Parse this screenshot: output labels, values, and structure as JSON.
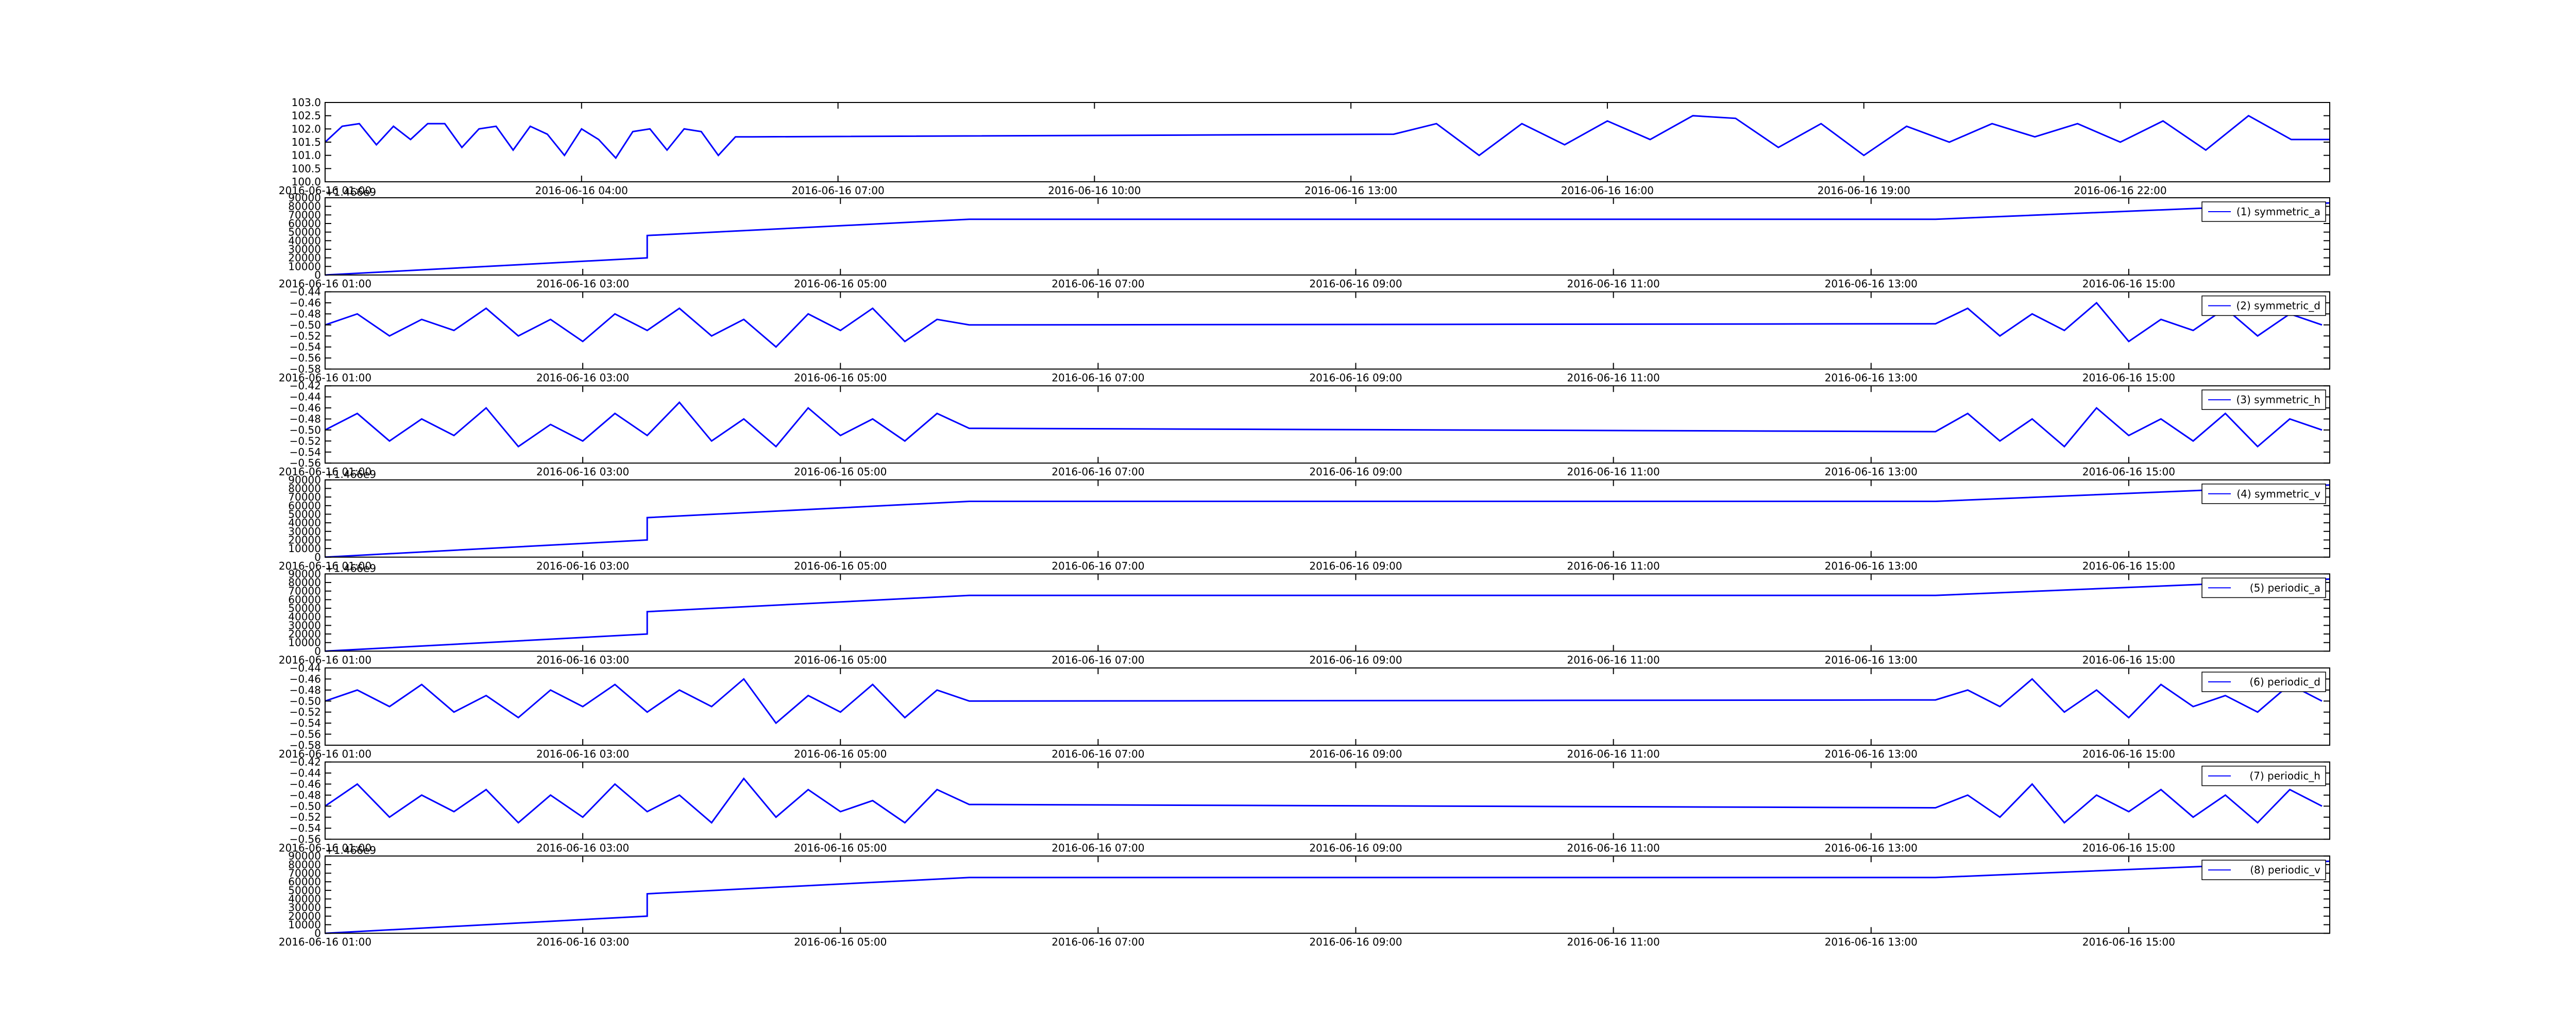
{
  "chart_data": [
    {
      "type": "line",
      "x": [
        1.0,
        1.2,
        1.4,
        1.6,
        1.8,
        2.0,
        2.2,
        2.4,
        2.6,
        2.8,
        3.0,
        3.2,
        3.4,
        3.6,
        3.8,
        4.0,
        4.2,
        4.4,
        4.6,
        4.8,
        5.0,
        5.2,
        5.4,
        5.6,
        5.8,
        6.0,
        13.5,
        14.0,
        14.5,
        15.0,
        15.5,
        16.0,
        16.5,
        17.0,
        17.5,
        18.0,
        18.5,
        19.0,
        19.5,
        20.0,
        20.5,
        21.0,
        21.5,
        22.0,
        22.5,
        23.0,
        23.5,
        24.0,
        24.45
      ],
      "series": [
        {
          "color": "#0000ff",
          "values": [
            101.5,
            102.1,
            102.2,
            101.4,
            102.1,
            101.6,
            102.2,
            102.2,
            101.3,
            102.0,
            102.1,
            101.2,
            102.1,
            101.8,
            101.0,
            102.0,
            101.6,
            100.9,
            101.9,
            102.0,
            101.2,
            102.0,
            101.9,
            101.0,
            101.7,
            101.7,
            101.8,
            102.2,
            101.0,
            102.2,
            101.4,
            102.3,
            101.6,
            102.5,
            102.4,
            101.3,
            102.2,
            101.0,
            102.1,
            101.5,
            102.2,
            101.7,
            102.2,
            101.5,
            102.3,
            101.2,
            102.5,
            101.6,
            101.6
          ]
        }
      ],
      "xlim": [
        1.0,
        24.45
      ],
      "xticks": [
        {
          "value": 1,
          "label": "2016-06-16 01:00"
        },
        {
          "value": 4,
          "label": "2016-06-16 04:00"
        },
        {
          "value": 7,
          "label": "2016-06-16 07:00"
        },
        {
          "value": 10,
          "label": "2016-06-16 10:00"
        },
        {
          "value": 13,
          "label": "2016-06-16 13:00"
        },
        {
          "value": 16,
          "label": "2016-06-16 16:00"
        },
        {
          "value": 19,
          "label": "2016-06-16 19:00"
        },
        {
          "value": 22,
          "label": "2016-06-16 22:00"
        }
      ],
      "ylim": [
        100.0,
        103.0
      ],
      "yticks": [
        {
          "value": 100.0,
          "label": "100.0"
        },
        {
          "value": 100.5,
          "label": "100.5"
        },
        {
          "value": 101.0,
          "label": "101.0"
        },
        {
          "value": 101.5,
          "label": "101.5"
        },
        {
          "value": 102.0,
          "label": "102.0"
        },
        {
          "value": 102.5,
          "label": "102.5"
        },
        {
          "value": 103.0,
          "label": "103.0"
        }
      ]
    },
    {
      "type": "line",
      "offset_label": "+1.466e9",
      "x": [
        1.0,
        3.5,
        3.5,
        6.0,
        13.5,
        16.56
      ],
      "series": [
        {
          "name": "(1) symmetric_a",
          "color": "#0000ff",
          "values": [
            0,
            20000,
            46000,
            65000,
            65000,
            84000
          ]
        }
      ],
      "xlim": [
        1.0,
        16.56
      ],
      "xticks": [
        {
          "value": 1,
          "label": "2016-06-16 01:00"
        },
        {
          "value": 3,
          "label": "2016-06-16 03:00"
        },
        {
          "value": 5,
          "label": "2016-06-16 05:00"
        },
        {
          "value": 7,
          "label": "2016-06-16 07:00"
        },
        {
          "value": 9,
          "label": "2016-06-16 09:00"
        },
        {
          "value": 11,
          "label": "2016-06-16 11:00"
        },
        {
          "value": 13,
          "label": "2016-06-16 13:00"
        },
        {
          "value": 15,
          "label": "2016-06-16 15:00"
        }
      ],
      "ylim": [
        0,
        90000
      ],
      "yticks": [
        0,
        10000,
        20000,
        30000,
        40000,
        50000,
        60000,
        70000,
        80000,
        90000
      ]
    },
    {
      "type": "line",
      "x": [
        1.0,
        1.25,
        1.5,
        1.75,
        2.0,
        2.25,
        2.5,
        2.75,
        3.0,
        3.25,
        3.5,
        3.75,
        4.0,
        4.25,
        4.5,
        4.75,
        5.0,
        5.25,
        5.5,
        5.75,
        6.0,
        13.5,
        13.75,
        14.0,
        14.25,
        14.5,
        14.75,
        15.0,
        15.25,
        15.5,
        15.75,
        16.0,
        16.25,
        16.5
      ],
      "series": [
        {
          "name": "(2) symmetric_d",
          "color": "#0000ff",
          "values": [
            -0.5,
            -0.48,
            -0.52,
            -0.49,
            -0.51,
            -0.47,
            -0.52,
            -0.49,
            -0.53,
            -0.48,
            -0.51,
            -0.47,
            -0.52,
            -0.49,
            -0.54,
            -0.48,
            -0.51,
            -0.47,
            -0.53,
            -0.49,
            -0.5,
            -0.498,
            -0.47,
            -0.52,
            -0.48,
            -0.51,
            -0.46,
            -0.53,
            -0.49,
            -0.51,
            -0.47,
            -0.52,
            -0.48,
            -0.5
          ]
        }
      ],
      "xlim": [
        1.0,
        16.56
      ],
      "xticks": [
        {
          "value": 1,
          "label": "2016-06-16 01:00"
        },
        {
          "value": 3,
          "label": "2016-06-16 03:00"
        },
        {
          "value": 5,
          "label": "2016-06-16 05:00"
        },
        {
          "value": 7,
          "label": "2016-06-16 07:00"
        },
        {
          "value": 9,
          "label": "2016-06-16 09:00"
        },
        {
          "value": 11,
          "label": "2016-06-16 11:00"
        },
        {
          "value": 13,
          "label": "2016-06-16 13:00"
        },
        {
          "value": 15,
          "label": "2016-06-16 15:00"
        }
      ],
      "ylim": [
        -0.58,
        -0.44
      ],
      "yticks": [
        {
          "value": -0.58,
          "label": "−0.58"
        },
        {
          "value": -0.56,
          "label": "−0.56"
        },
        {
          "value": -0.54,
          "label": "−0.54"
        },
        {
          "value": -0.52,
          "label": "−0.52"
        },
        {
          "value": -0.5,
          "label": "−0.50"
        },
        {
          "value": -0.48,
          "label": "−0.48"
        },
        {
          "value": -0.46,
          "label": "−0.46"
        },
        {
          "value": -0.44,
          "label": "−0.44"
        }
      ]
    },
    {
      "type": "line",
      "x": [
        1.0,
        1.25,
        1.5,
        1.75,
        2.0,
        2.25,
        2.5,
        2.75,
        3.0,
        3.25,
        3.5,
        3.75,
        4.0,
        4.25,
        4.5,
        4.75,
        5.0,
        5.25,
        5.5,
        5.75,
        6.0,
        13.5,
        13.75,
        14.0,
        14.25,
        14.5,
        14.75,
        15.0,
        15.25,
        15.5,
        15.75,
        16.0,
        16.25,
        16.5
      ],
      "series": [
        {
          "name": "(3) symmetric_h",
          "color": "#0000ff",
          "values": [
            -0.5,
            -0.47,
            -0.52,
            -0.48,
            -0.51,
            -0.46,
            -0.53,
            -0.49,
            -0.52,
            -0.47,
            -0.51,
            -0.45,
            -0.52,
            -0.48,
            -0.53,
            -0.46,
            -0.51,
            -0.48,
            -0.52,
            -0.47,
            -0.497,
            -0.503,
            -0.47,
            -0.52,
            -0.48,
            -0.53,
            -0.46,
            -0.51,
            -0.48,
            -0.52,
            -0.47,
            -0.53,
            -0.48,
            -0.5
          ]
        }
      ],
      "xlim": [
        1.0,
        16.56
      ],
      "xticks": [
        {
          "value": 1,
          "label": "2016-06-16 01:00"
        },
        {
          "value": 3,
          "label": "2016-06-16 03:00"
        },
        {
          "value": 5,
          "label": "2016-06-16 05:00"
        },
        {
          "value": 7,
          "label": "2016-06-16 07:00"
        },
        {
          "value": 9,
          "label": "2016-06-16 09:00"
        },
        {
          "value": 11,
          "label": "2016-06-16 11:00"
        },
        {
          "value": 13,
          "label": "2016-06-16 13:00"
        },
        {
          "value": 15,
          "label": "2016-06-16 15:00"
        }
      ],
      "ylim": [
        -0.56,
        -0.42
      ],
      "yticks": [
        {
          "value": -0.56,
          "label": "−0.56"
        },
        {
          "value": -0.54,
          "label": "−0.54"
        },
        {
          "value": -0.52,
          "label": "−0.52"
        },
        {
          "value": -0.5,
          "label": "−0.50"
        },
        {
          "value": -0.48,
          "label": "−0.48"
        },
        {
          "value": -0.46,
          "label": "−0.46"
        },
        {
          "value": -0.44,
          "label": "−0.44"
        },
        {
          "value": -0.42,
          "label": "−0.42"
        }
      ]
    },
    {
      "type": "line",
      "offset_label": "+1.466e9",
      "x": [
        1.0,
        3.5,
        3.5,
        6.0,
        13.5,
        16.56
      ],
      "series": [
        {
          "name": "(4) symmetric_v",
          "color": "#0000ff",
          "values": [
            0,
            20000,
            46000,
            65000,
            65000,
            84000
          ]
        }
      ],
      "xlim": [
        1.0,
        16.56
      ],
      "xticks": [
        {
          "value": 1,
          "label": "2016-06-16 01:00"
        },
        {
          "value": 3,
          "label": "2016-06-16 03:00"
        },
        {
          "value": 5,
          "label": "2016-06-16 05:00"
        },
        {
          "value": 7,
          "label": "2016-06-16 07:00"
        },
        {
          "value": 9,
          "label": "2016-06-16 09:00"
        },
        {
          "value": 11,
          "label": "2016-06-16 11:00"
        },
        {
          "value": 13,
          "label": "2016-06-16 13:00"
        },
        {
          "value": 15,
          "label": "2016-06-16 15:00"
        }
      ],
      "ylim": [
        0,
        90000
      ],
      "yticks": [
        0,
        10000,
        20000,
        30000,
        40000,
        50000,
        60000,
        70000,
        80000,
        90000
      ]
    },
    {
      "type": "line",
      "offset_label": "+1.466e9",
      "x": [
        1.0,
        3.5,
        3.5,
        6.0,
        13.5,
        16.56
      ],
      "series": [
        {
          "name": "(5) periodic_a",
          "color": "#0000ff",
          "values": [
            0,
            20000,
            46000,
            65000,
            65000,
            84000
          ]
        }
      ],
      "xlim": [
        1.0,
        16.56
      ],
      "xticks": [
        {
          "value": 1,
          "label": "2016-06-16 01:00"
        },
        {
          "value": 3,
          "label": "2016-06-16 03:00"
        },
        {
          "value": 5,
          "label": "2016-06-16 05:00"
        },
        {
          "value": 7,
          "label": "2016-06-16 07:00"
        },
        {
          "value": 9,
          "label": "2016-06-16 09:00"
        },
        {
          "value": 11,
          "label": "2016-06-16 11:00"
        },
        {
          "value": 13,
          "label": "2016-06-16 13:00"
        },
        {
          "value": 15,
          "label": "2016-06-16 15:00"
        }
      ],
      "ylim": [
        0,
        90000
      ],
      "yticks": [
        0,
        10000,
        20000,
        30000,
        40000,
        50000,
        60000,
        70000,
        80000,
        90000
      ]
    },
    {
      "type": "line",
      "x": [
        1.0,
        1.25,
        1.5,
        1.75,
        2.0,
        2.25,
        2.5,
        2.75,
        3.0,
        3.25,
        3.5,
        3.75,
        4.0,
        4.25,
        4.5,
        4.75,
        5.0,
        5.25,
        5.5,
        5.75,
        6.0,
        13.5,
        13.75,
        14.0,
        14.25,
        14.5,
        14.75,
        15.0,
        15.25,
        15.5,
        15.75,
        16.0,
        16.25,
        16.5
      ],
      "series": [
        {
          "name": "(6) periodic_d",
          "color": "#0000ff",
          "values": [
            -0.5,
            -0.48,
            -0.51,
            -0.47,
            -0.52,
            -0.49,
            -0.53,
            -0.48,
            -0.51,
            -0.47,
            -0.52,
            -0.48,
            -0.51,
            -0.46,
            -0.54,
            -0.49,
            -0.52,
            -0.47,
            -0.53,
            -0.48,
            -0.5,
            -0.498,
            -0.48,
            -0.51,
            -0.46,
            -0.52,
            -0.48,
            -0.53,
            -0.47,
            -0.51,
            -0.49,
            -0.52,
            -0.47,
            -0.5
          ]
        }
      ],
      "xlim": [
        1.0,
        16.56
      ],
      "xticks": [
        {
          "value": 1,
          "label": "2016-06-16 01:00"
        },
        {
          "value": 3,
          "label": "2016-06-16 03:00"
        },
        {
          "value": 5,
          "label": "2016-06-16 05:00"
        },
        {
          "value": 7,
          "label": "2016-06-16 07:00"
        },
        {
          "value": 9,
          "label": "2016-06-16 09:00"
        },
        {
          "value": 11,
          "label": "2016-06-16 11:00"
        },
        {
          "value": 13,
          "label": "2016-06-16 13:00"
        },
        {
          "value": 15,
          "label": "2016-06-16 15:00"
        }
      ],
      "ylim": [
        -0.58,
        -0.44
      ],
      "yticks": [
        {
          "value": -0.58,
          "label": "−0.58"
        },
        {
          "value": -0.56,
          "label": "−0.56"
        },
        {
          "value": -0.54,
          "label": "−0.54"
        },
        {
          "value": -0.52,
          "label": "−0.52"
        },
        {
          "value": -0.5,
          "label": "−0.50"
        },
        {
          "value": -0.48,
          "label": "−0.48"
        },
        {
          "value": -0.46,
          "label": "−0.46"
        },
        {
          "value": -0.44,
          "label": "−0.44"
        }
      ]
    },
    {
      "type": "line",
      "x": [
        1.0,
        1.25,
        1.5,
        1.75,
        2.0,
        2.25,
        2.5,
        2.75,
        3.0,
        3.25,
        3.5,
        3.75,
        4.0,
        4.25,
        4.5,
        4.75,
        5.0,
        5.25,
        5.5,
        5.75,
        6.0,
        13.5,
        13.75,
        14.0,
        14.25,
        14.5,
        14.75,
        15.0,
        15.25,
        15.5,
        15.75,
        16.0,
        16.25,
        16.5
      ],
      "series": [
        {
          "name": "(7) periodic_h",
          "color": "#0000ff",
          "values": [
            -0.5,
            -0.46,
            -0.52,
            -0.48,
            -0.51,
            -0.47,
            -0.53,
            -0.48,
            -0.52,
            -0.46,
            -0.51,
            -0.48,
            -0.53,
            -0.45,
            -0.52,
            -0.47,
            -0.51,
            -0.49,
            -0.53,
            -0.47,
            -0.497,
            -0.503,
            -0.48,
            -0.52,
            -0.46,
            -0.53,
            -0.48,
            -0.51,
            -0.47,
            -0.52,
            -0.48,
            -0.53,
            -0.47,
            -0.5
          ]
        }
      ],
      "xlim": [
        1.0,
        16.56
      ],
      "xticks": [
        {
          "value": 1,
          "label": "2016-06-16 01:00"
        },
        {
          "value": 3,
          "label": "2016-06-16 03:00"
        },
        {
          "value": 5,
          "label": "2016-06-16 05:00"
        },
        {
          "value": 7,
          "label": "2016-06-16 07:00"
        },
        {
          "value": 9,
          "label": "2016-06-16 09:00"
        },
        {
          "value": 11,
          "label": "2016-06-16 11:00"
        },
        {
          "value": 13,
          "label": "2016-06-16 13:00"
        },
        {
          "value": 15,
          "label": "2016-06-16 15:00"
        }
      ],
      "ylim": [
        -0.56,
        -0.42
      ],
      "yticks": [
        {
          "value": -0.56,
          "label": "−0.56"
        },
        {
          "value": -0.54,
          "label": "−0.54"
        },
        {
          "value": -0.52,
          "label": "−0.52"
        },
        {
          "value": -0.5,
          "label": "−0.50"
        },
        {
          "value": -0.48,
          "label": "−0.48"
        },
        {
          "value": -0.46,
          "label": "−0.46"
        },
        {
          "value": -0.44,
          "label": "−0.44"
        },
        {
          "value": -0.42,
          "label": "−0.42"
        }
      ]
    },
    {
      "type": "line",
      "offset_label": "+1.466e9",
      "x": [
        1.0,
        3.5,
        3.5,
        6.0,
        13.5,
        16.56
      ],
      "series": [
        {
          "name": "(8) periodic_v",
          "color": "#0000ff",
          "values": [
            0,
            20000,
            46000,
            65000,
            65000,
            84000
          ]
        }
      ],
      "xlim": [
        1.0,
        16.56
      ],
      "xticks": [
        {
          "value": 1,
          "label": "2016-06-16 01:00"
        },
        {
          "value": 3,
          "label": "2016-06-16 03:00"
        },
        {
          "value": 5,
          "label": "2016-06-16 05:00"
        },
        {
          "value": 7,
          "label": "2016-06-16 07:00"
        },
        {
          "value": 9,
          "label": "2016-06-16 09:00"
        },
        {
          "value": 11,
          "label": "2016-06-16 11:00"
        },
        {
          "value": 13,
          "label": "2016-06-16 13:00"
        },
        {
          "value": 15,
          "label": "2016-06-16 15:00"
        }
      ],
      "ylim": [
        0,
        90000
      ],
      "yticks": [
        0,
        10000,
        20000,
        30000,
        40000,
        50000,
        60000,
        70000,
        80000,
        90000
      ]
    }
  ]
}
